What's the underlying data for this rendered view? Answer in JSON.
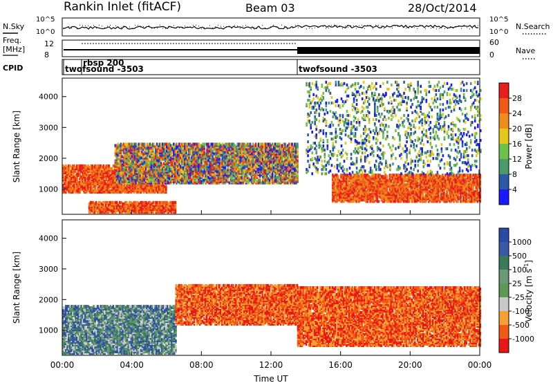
{
  "header": {
    "title": "Rankin Inlet (fitACF)",
    "beam": "Beam 03",
    "date": "28/Oct/2014"
  },
  "top_panels": {
    "nsky_label": "N.Sky",
    "nsearch_label": "N.Search",
    "log_ticks": [
      "10^5",
      "10^0"
    ],
    "freq_label": "Freq.",
    "freq_unit": "[MHz]",
    "freq_ticks": [
      "12",
      "8"
    ],
    "nave_label": "Nave",
    "nave_ticks": [
      "60",
      "0"
    ],
    "cpid_label": "CPID",
    "cpid_entries": [
      {
        "name": "twofsound -3503",
        "start_ut": 0.0
      },
      {
        "name": "rbsp 200",
        "start_ut": 1.0
      },
      {
        "name": "twofsound -3503",
        "start_ut": 13.3
      }
    ]
  },
  "colors": {
    "power": [
      "#1a1aff",
      "#2a5aa8",
      "#4a9a6a",
      "#6ec24a",
      "#e6c81a",
      "#f08c1e",
      "#f05a14",
      "#e61e1e"
    ],
    "velocity": [
      "#e81818",
      "#f05a14",
      "#f5a033",
      "#c8c8c8",
      "#5a9a55",
      "#6a9a78",
      "#3a7a5a",
      "#3a5aa8",
      "#2a4aa8"
    ]
  },
  "chart_data": [
    {
      "type": "heatmap",
      "title": "",
      "xlabel": "",
      "ylabel": "Slant Range [km]",
      "xlim": [
        0,
        24
      ],
      "ylim": [
        180,
        4600
      ],
      "yticks": [
        "1000",
        "2000",
        "3000",
        "4000"
      ],
      "colorbar_label": "Power [dB]",
      "colorbar_ticks": [
        "4",
        "8",
        "12",
        "16",
        "20",
        "24",
        "28"
      ],
      "series": [
        {
          "t": [
            0,
            2,
            4,
            6
          ],
          "range": [
            900,
            1800
          ],
          "level": "high"
        },
        {
          "t": [
            1.5,
            6.5
          ],
          "range": [
            250,
            600
          ],
          "level": "high"
        },
        {
          "t": [
            3,
            13.5
          ],
          "range": [
            1200,
            2500
          ],
          "level": "mixed"
        },
        {
          "t": [
            15.5,
            24
          ],
          "range": [
            600,
            1500
          ],
          "level": "high"
        },
        {
          "t": [
            14,
            24
          ],
          "range": [
            1500,
            4500
          ],
          "level": "low"
        }
      ]
    },
    {
      "type": "heatmap",
      "title": "",
      "xlabel": "Time UT",
      "ylabel": "Slant Range [km]",
      "xlim": [
        0,
        24
      ],
      "xticks": [
        "00:00",
        "04:00",
        "08:00",
        "12:00",
        "16:00",
        "20:00",
        "00:00"
      ],
      "ylim": [
        180,
        4600
      ],
      "yticks": [
        "1000",
        "2000",
        "3000",
        "4000"
      ],
      "colorbar_label": "Velocity [m s",
      "colorbar_label_sup": "-1",
      "colorbar_label_end": "]",
      "colorbar_ticks": [
        "-1000",
        "-500",
        "-100",
        "-25",
        "25",
        "100",
        "500",
        "1000"
      ],
      "series": [
        {
          "t": [
            0,
            6.5
          ],
          "range": [
            250,
            1800
          ],
          "level": "positive"
        },
        {
          "t": [
            6.5,
            13.5
          ],
          "range": [
            1200,
            2500
          ],
          "level": "negative"
        },
        {
          "t": [
            13.5,
            24
          ],
          "range": [
            500,
            2400
          ],
          "level": "negative"
        }
      ]
    }
  ]
}
